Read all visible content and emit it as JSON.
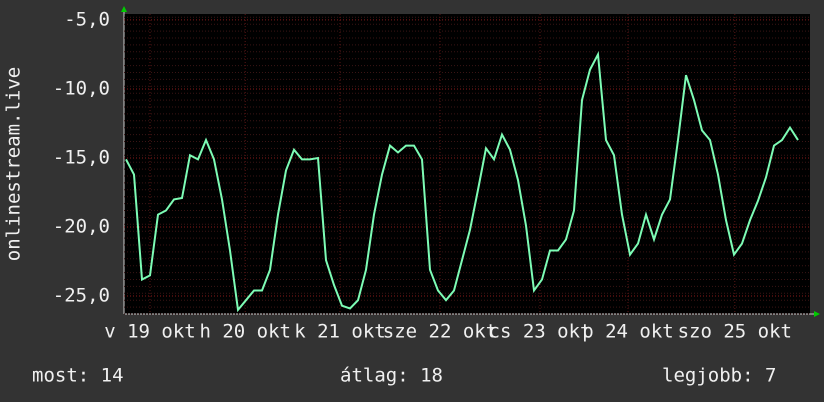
{
  "chart_data": {
    "type": "line",
    "y_label": "onlinestream.live",
    "series": [
      {
        "color": "#7dfcb5",
        "values": [
          -15.1,
          -16.2,
          -23.8,
          -23.5,
          -19.1,
          -18.8,
          -18,
          -17.9,
          -14.8,
          -15.1,
          -13.7,
          -15.1,
          -18,
          -21.7,
          -26.0,
          -25.3,
          -24.6,
          -24.6,
          -23.1,
          -19.1,
          -15.9,
          -14.4,
          -15.1,
          -15.1,
          -15,
          -22.4,
          -24.2,
          -25.7,
          -25.9,
          -25.3,
          -23.1,
          -19.1,
          -16.2,
          -14.1,
          -14.6,
          -14.1,
          -14.1,
          -15.1,
          -23.1,
          -24.6,
          -25.3,
          -24.6,
          -22.4,
          -20.2,
          -17.3,
          -14.3,
          -15.1,
          -13.3,
          -14.4,
          -16.6,
          -19.9,
          -24.6,
          -23.8,
          -21.7,
          -21.7,
          -20.9,
          -18.8,
          -10.8,
          -8.6,
          -7.5,
          -13.7,
          -14.8,
          -19.1,
          -22,
          -21.2,
          -19.1,
          -20.9,
          -19.1,
          -18,
          -13.7,
          -9,
          -10.8,
          -13,
          -13.7,
          -16.2,
          -19.5,
          -22,
          -21.2,
          -19.5,
          -18.1,
          -16.4,
          -14.1,
          -13.7,
          -12.8,
          -13.7
        ]
      }
    ],
    "xlim": [
      -0.25,
      85.5
    ],
    "xticks": [
      {
        "value": 3,
        "label": "v 19 okt"
      },
      {
        "value": 14.9,
        "label": "h 20 okt"
      },
      {
        "value": 26.75,
        "label": "k 21 okt"
      },
      {
        "value": 39.25,
        "label": "sze 22 okt"
      },
      {
        "value": 51.75,
        "label": "cs 23 okt"
      },
      {
        "value": 62.75,
        "label": "p 24 okt"
      },
      {
        "value": 76.1,
        "label": "szo 25 okt"
      }
    ],
    "ylim": [
      -26.3,
      -4.57
    ],
    "yticks": [
      {
        "value": -5,
        "label": "-5,0"
      },
      {
        "value": -10,
        "label": "-10,0"
      },
      {
        "value": -15,
        "label": "-15,0"
      },
      {
        "value": -20,
        "label": "-20,0"
      },
      {
        "value": -25,
        "label": "-25,0"
      }
    ],
    "grid": true,
    "stats": [
      "most: 14",
      "átlag: 18",
      "legjobb: 7"
    ]
  }
}
